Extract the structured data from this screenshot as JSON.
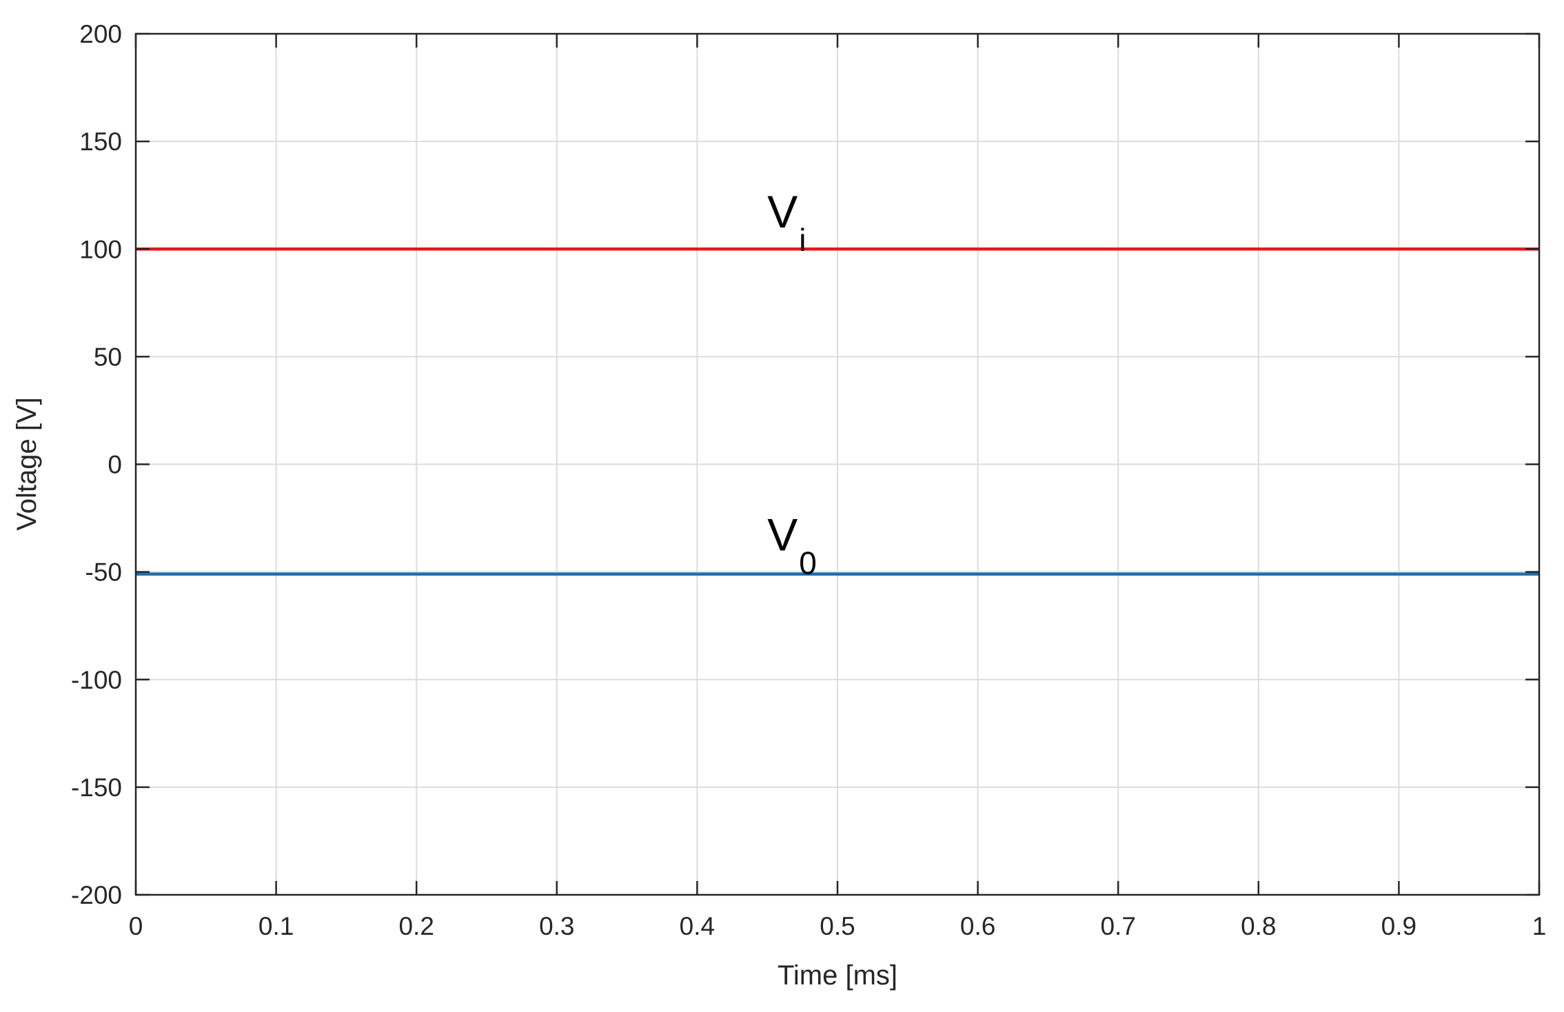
{
  "chart_data": {
    "type": "line",
    "xlabel": "Time [ms]",
    "ylabel": "Voltage [V]",
    "xlim": [
      0,
      1
    ],
    "ylim": [
      -200,
      200
    ],
    "xticks": [
      0,
      0.1,
      0.2,
      0.3,
      0.4,
      0.5,
      0.6,
      0.7,
      0.8,
      0.9,
      1
    ],
    "xtick_labels": [
      "0",
      "0.1",
      "0.2",
      "0.3",
      "0.4",
      "0.5",
      "0.6",
      "0.7",
      "0.8",
      "0.9",
      "1"
    ],
    "yticks": [
      200,
      150,
      100,
      50,
      0,
      -50,
      -100,
      -150,
      -200
    ],
    "ytick_labels": [
      "200",
      "150",
      "100",
      "50",
      "0",
      "-50",
      "-100",
      "-150",
      "-200"
    ],
    "grid": true,
    "series": [
      {
        "color": "#e8141c",
        "x": [
          0,
          1
        ],
        "y": [
          100,
          100
        ]
      },
      {
        "color": "#1f6fb0",
        "x": [
          0,
          1
        ],
        "y": [
          -51,
          -51
        ]
      }
    ],
    "annotations": [
      {
        "text": "V",
        "sub": "i",
        "x": 0.45,
        "y": 110
      },
      {
        "text": "V",
        "sub": "0",
        "x": 0.45,
        "y": -40
      }
    ]
  }
}
